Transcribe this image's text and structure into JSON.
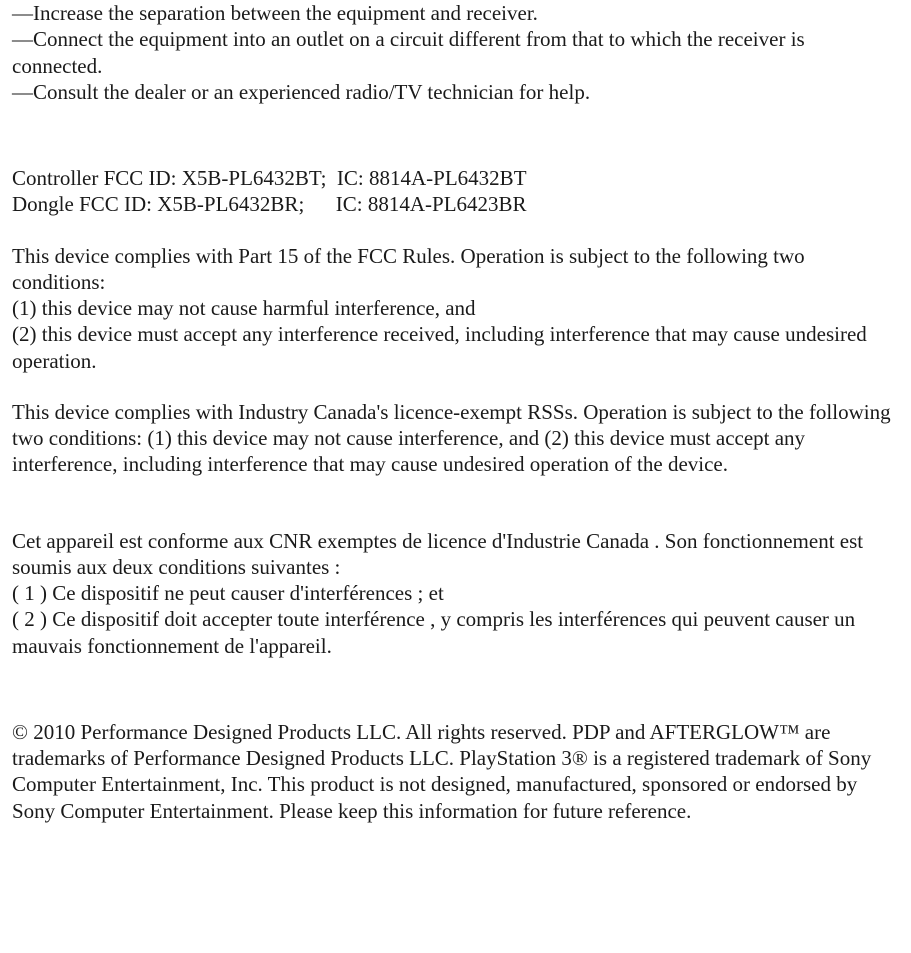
{
  "tips": {
    "line1": "—Increase the separation between the equipment and receiver.",
    "line2": "—Connect the equipment into an outlet on a circuit different from that to which the receiver is connected.",
    "line3": "—Consult the dealer or an experienced radio/TV technician for help."
  },
  "ids": {
    "controller_label": "Controller FCC ID: X5B-PL6432BT;  IC: 8814A-PL6432BT",
    "dongle_label": "Dongle FCC ID: X5B-PL6432BR;      IC: 8814A-PL6423BR"
  },
  "fcc": {
    "intro": "This device complies with Part 15 of the FCC Rules.  Operation is subject to the following two conditions:",
    "cond1": "(1) this device may not cause harmful interference, and",
    "cond2": "(2) this device must accept any interference received, including interference that may cause undesired operation."
  },
  "ic_en": {
    "text": "This device complies with Industry Canada's licence-exempt RSSs.              Operation is subject to the following two conditions: (1) this device may not cause interference, and (2) this device must accept any interference, including interference that may cause undesired operation of the device."
  },
  "ic_fr": {
    "intro": "Cet appareil est conforme aux CNR exemptes de licence d'Industrie Canada . Son fonctionnement est soumis aux deux conditions suivantes :",
    "cond1": "( 1 ) Ce dispositif ne peut causer d'interférences ; et",
    "cond2": "( 2 ) Ce dispositif doit accepter toute interférence , y compris les interférences qui peuvent causer un mauvais fonctionnement de l'appareil."
  },
  "copyright": {
    "text": "© 2010 Performance Designed Products LLC. All rights reserved. PDP and AFTERGLOW™ are trademarks of Performance Designed Products LLC. PlayStation 3® is a registered trademark of Sony Computer Entertainment, Inc. This product is not designed, manufactured, sponsored or endorsed by Sony Computer Entertainment. Please keep this information for future reference."
  }
}
